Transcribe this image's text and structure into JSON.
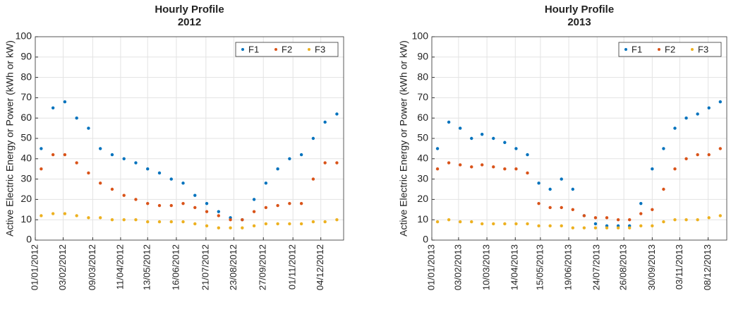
{
  "chart_data": [
    {
      "type": "scatter",
      "title": "Hourly Profile",
      "subtitle": "2012",
      "ylabel": "Active Electric Energy or Power (kWh or kW)",
      "x": [
        "08/01/2012",
        "22/01/2012",
        "05/02/2012",
        "19/02/2012",
        "04/03/2012",
        "18/03/2012",
        "01/04/2012",
        "15/04/2012",
        "29/04/2012",
        "13/05/2012",
        "27/05/2012",
        "10/06/2012",
        "24/06/2012",
        "08/07/2012",
        "22/07/2012",
        "05/08/2012",
        "19/08/2012",
        "02/09/2012",
        "16/09/2012",
        "30/09/2012",
        "14/10/2012",
        "28/10/2012",
        "11/11/2012",
        "25/11/2012",
        "09/12/2012",
        "23/12/2012"
      ],
      "series": [
        {
          "name": "F1",
          "color": "#0072bd",
          "values": [
            45,
            65,
            68,
            60,
            55,
            45,
            42,
            40,
            38,
            35,
            33,
            30,
            28,
            22,
            18,
            14,
            11,
            10,
            20,
            28,
            35,
            40,
            42,
            50,
            58,
            62
          ]
        },
        {
          "name": "F2",
          "color": "#d95319",
          "values": [
            35,
            42,
            42,
            38,
            33,
            28,
            25,
            22,
            20,
            18,
            17,
            17,
            18,
            16,
            14,
            12,
            10,
            10,
            14,
            16,
            17,
            18,
            18,
            30,
            38,
            38
          ]
        },
        {
          "name": "F3",
          "color": "#edb120",
          "values": [
            12,
            13,
            13,
            12,
            11,
            11,
            10,
            10,
            10,
            9,
            9,
            9,
            9,
            8,
            7,
            6,
            6,
            6,
            7,
            8,
            8,
            8,
            8,
            9,
            9,
            10
          ]
        }
      ],
      "xlim": [
        "01/01/2012",
        "31/12/2012"
      ],
      "xticks": [
        "01/01/2012",
        "03/02/2012",
        "09/03/2012",
        "11/04/2012",
        "13/05/2012",
        "16/06/2012",
        "21/07/2012",
        "23/08/2012",
        "27/09/2012",
        "01/11/2012",
        "04/12/2012"
      ],
      "ylim": [
        0,
        100
      ],
      "yticks": [
        0,
        10,
        20,
        30,
        40,
        50,
        60,
        70,
        80,
        90,
        100
      ],
      "grid": true,
      "legend": "upper right"
    },
    {
      "type": "scatter",
      "title": "Hourly Profile",
      "subtitle": "2013",
      "ylabel": "Active Electric Energy or Power (kWh or kW)",
      "x": [
        "08/01/2013",
        "22/01/2013",
        "05/02/2013",
        "19/02/2013",
        "04/03/2013",
        "18/03/2013",
        "01/04/2013",
        "15/04/2013",
        "29/04/2013",
        "13/05/2013",
        "27/05/2013",
        "10/06/2013",
        "24/06/2013",
        "08/07/2013",
        "22/07/2013",
        "05/08/2013",
        "19/08/2013",
        "02/09/2013",
        "16/09/2013",
        "30/09/2013",
        "14/10/2013",
        "28/10/2013",
        "11/11/2013",
        "25/11/2013",
        "09/12/2013",
        "23/12/2013"
      ],
      "series": [
        {
          "name": "F1",
          "color": "#0072bd",
          "values": [
            45,
            58,
            55,
            50,
            52,
            50,
            48,
            45,
            42,
            28,
            25,
            30,
            25,
            12,
            8,
            7,
            7,
            7,
            18,
            35,
            45,
            55,
            60,
            62,
            65,
            68
          ]
        },
        {
          "name": "F2",
          "color": "#d95319",
          "values": [
            35,
            38,
            37,
            36,
            37,
            36,
            35,
            35,
            33,
            18,
            16,
            16,
            15,
            12,
            11,
            11,
            10,
            10,
            13,
            15,
            25,
            35,
            40,
            42,
            42,
            45
          ]
        },
        {
          "name": "F3",
          "color": "#edb120",
          "values": [
            9,
            10,
            9,
            9,
            8,
            8,
            8,
            8,
            8,
            7,
            7,
            7,
            6,
            6,
            6,
            6,
            6,
            6,
            7,
            7,
            9,
            10,
            10,
            10,
            11,
            12
          ]
        }
      ],
      "xlim": [
        "01/01/2013",
        "31/12/2013"
      ],
      "xticks": [
        "01/01/2013",
        "03/02/2013",
        "10/03/2013",
        "14/04/2013",
        "15/05/2013",
        "19/06/2013",
        "24/07/2013",
        "26/08/2013",
        "30/09/2013",
        "03/11/2013",
        "08/12/2013"
      ],
      "ylim": [
        0,
        100
      ],
      "yticks": [
        0,
        10,
        20,
        30,
        40,
        50,
        60,
        70,
        80,
        90,
        100
      ],
      "grid": true,
      "legend": "upper right"
    }
  ]
}
